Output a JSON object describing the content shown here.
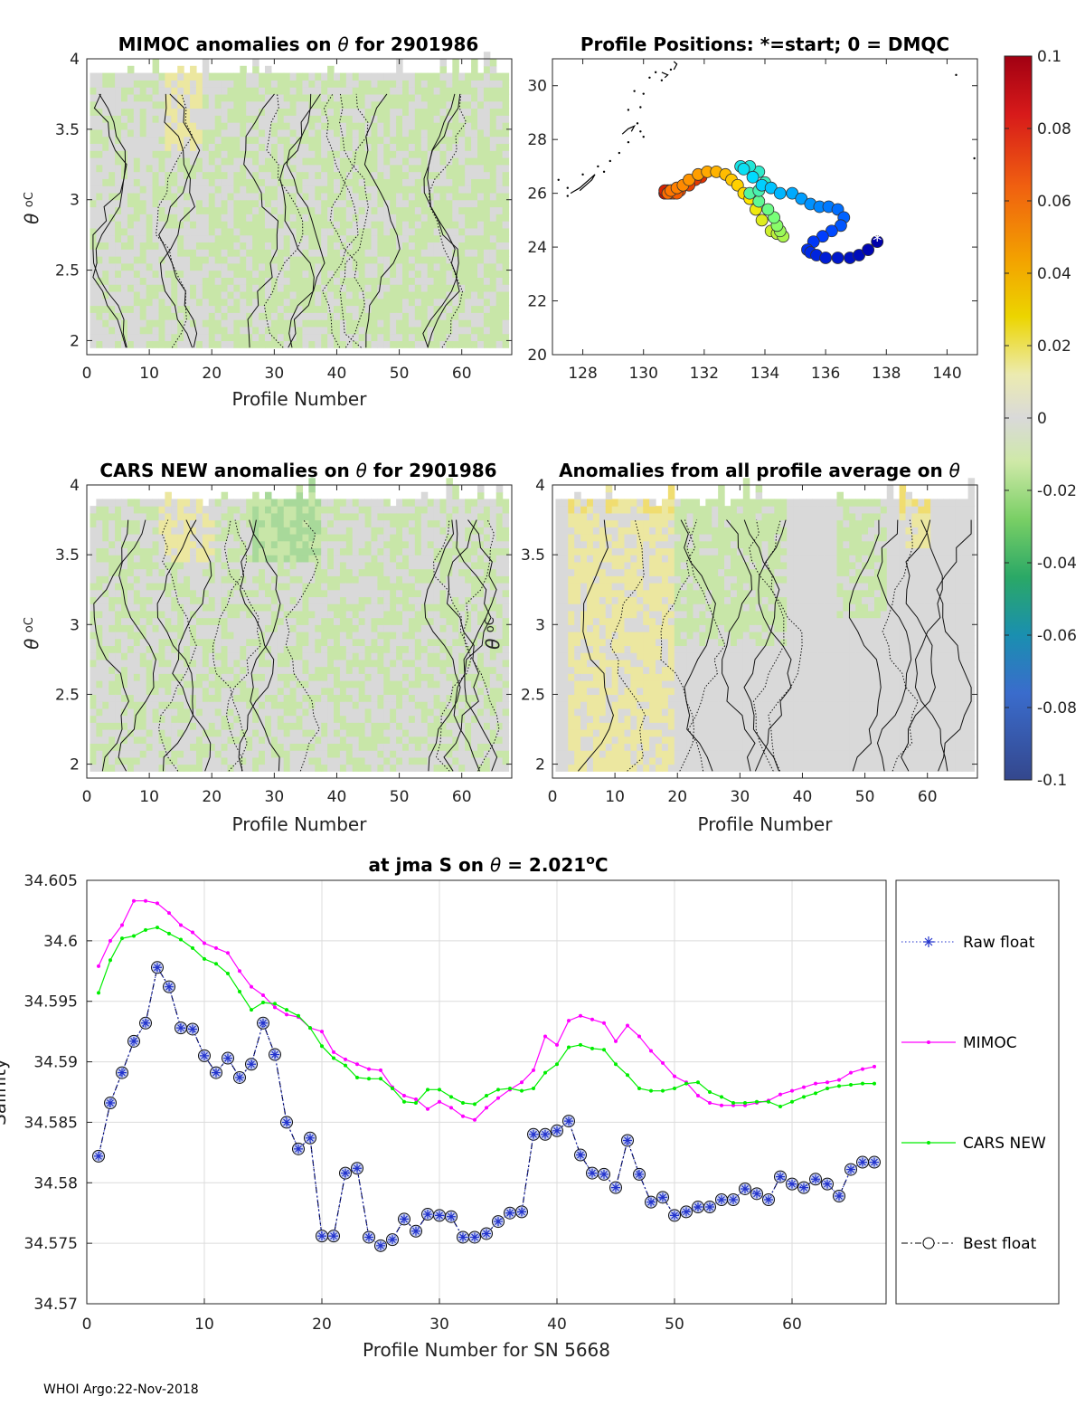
{
  "footer": "WHOI Argo:22-Nov-2018",
  "colors": {
    "mimoc": "#ff00ff",
    "cars": "#00ee00",
    "best_float": "#000033",
    "raw_float": "#2233cc",
    "marker_fill": "#c8d0f0",
    "anomaly_near_zero": "#d9d9d9",
    "anomaly_neg": "#c8e6a8",
    "anomaly_pos": "#ece7a0"
  },
  "chart_data": [
    {
      "id": "mimoc",
      "type": "heatmap",
      "title": "MIMOC anomalies on θ  for 2901986",
      "title_text": "MIMOC anomalies on ",
      "title_symbol": "θ",
      "title_suffix": "  for 2901986",
      "xlabel": "Profile Number",
      "ylabel_symbol": "θ",
      "ylabel_unit": "oC",
      "xlim": [
        0,
        68
      ],
      "ylim": [
        1.9,
        4
      ],
      "xticks": [
        "0",
        "10",
        "20",
        "30",
        "40",
        "50",
        "60"
      ],
      "yticks": [
        "2",
        "2.5",
        "3",
        "3.5",
        "4"
      ],
      "note": "mostly grey (≈0) to light green (-0.01 to -0.02) anomalies; yellow band near profiles 13-18"
    },
    {
      "id": "positions",
      "type": "scatter",
      "title": "Profile Positions: *=start; 0 = DMQC",
      "xlim": [
        127,
        141
      ],
      "ylim": [
        20,
        31
      ],
      "xticks": [
        "128",
        "130",
        "132",
        "134",
        "136",
        "138",
        "140"
      ],
      "yticks": [
        "20",
        "22",
        "24",
        "26",
        "28",
        "30"
      ],
      "start_marker": "*",
      "track": [
        [
          137.7,
          24.2
        ],
        [
          137.4,
          23.9
        ],
        [
          137.1,
          23.7
        ],
        [
          136.8,
          23.6
        ],
        [
          136.4,
          23.6
        ],
        [
          136.0,
          23.6
        ],
        [
          135.7,
          23.7
        ],
        [
          135.5,
          23.8
        ],
        [
          135.4,
          23.9
        ],
        [
          135.6,
          24.2
        ],
        [
          135.9,
          24.4
        ],
        [
          136.2,
          24.6
        ],
        [
          136.5,
          24.8
        ],
        [
          136.6,
          25.1
        ],
        [
          136.4,
          25.4
        ],
        [
          136.1,
          25.5
        ],
        [
          135.8,
          25.5
        ],
        [
          135.5,
          25.6
        ],
        [
          135.2,
          25.8
        ],
        [
          134.9,
          26.0
        ],
        [
          134.5,
          26.0
        ],
        [
          134.2,
          26.2
        ],
        [
          133.9,
          26.3
        ],
        [
          133.6,
          26.6
        ],
        [
          133.3,
          26.9
        ],
        [
          133.2,
          27.0
        ],
        [
          133.5,
          27.0
        ],
        [
          133.8,
          26.8
        ],
        [
          134.0,
          26.4
        ],
        [
          133.8,
          26.1
        ],
        [
          133.5,
          26.0
        ],
        [
          133.8,
          25.7
        ],
        [
          134.1,
          25.4
        ],
        [
          134.3,
          25.1
        ],
        [
          134.4,
          24.8
        ],
        [
          134.5,
          24.6
        ],
        [
          134.6,
          24.4
        ],
        [
          134.4,
          24.5
        ],
        [
          134.2,
          24.6
        ],
        [
          133.9,
          25.0
        ],
        [
          133.7,
          25.4
        ],
        [
          133.5,
          25.8
        ],
        [
          133.3,
          26.0
        ],
        [
          133.1,
          26.3
        ],
        [
          132.9,
          26.5
        ],
        [
          132.7,
          26.7
        ],
        [
          132.4,
          26.8
        ],
        [
          132.1,
          26.8
        ],
        [
          131.8,
          26.7
        ],
        [
          131.5,
          26.5
        ],
        [
          131.3,
          26.3
        ],
        [
          131.1,
          26.2
        ],
        [
          130.9,
          26.1
        ],
        [
          130.8,
          26.0
        ],
        [
          130.9,
          26.1
        ],
        [
          131.1,
          26.0
        ],
        [
          131.0,
          26.0
        ],
        [
          131.2,
          26.1
        ],
        [
          131.5,
          26.3
        ],
        [
          131.7,
          26.5
        ],
        [
          131.9,
          26.6
        ],
        [
          130.8,
          26.0
        ],
        [
          130.7,
          26.1
        ],
        [
          130.9,
          26.0
        ],
        [
          130.7,
          26.0
        ],
        [
          130.8,
          26.1
        ],
        [
          130.7,
          26.0
        ]
      ],
      "coast": [
        [
          [
            127.6,
            26.0
          ],
          [
            127.9,
            26.2
          ],
          [
            128.2,
            26.5
          ],
          [
            128.4,
            26.7
          ],
          [
            128.3,
            26.5
          ],
          [
            127.9,
            26.1
          ]
        ],
        [
          [
            129.3,
            28.2
          ],
          [
            129.5,
            28.4
          ],
          [
            129.7,
            28.5
          ],
          [
            129.6,
            28.3
          ]
        ],
        [
          [
            130.6,
            30.5
          ],
          [
            130.8,
            30.4
          ],
          [
            130.7,
            30.3
          ]
        ],
        [
          [
            131.0,
            30.6
          ],
          [
            131.1,
            30.8
          ],
          [
            131.0,
            30.9
          ]
        ]
      ],
      "coast_dots": [
        [
          127.2,
          26.5
        ],
        [
          127.5,
          26.2
        ],
        [
          128.0,
          26.7
        ],
        [
          128.5,
          27.0
        ],
        [
          128.9,
          27.2
        ],
        [
          129.2,
          27.5
        ],
        [
          129.5,
          27.9
        ],
        [
          129.9,
          28.3
        ],
        [
          130.0,
          28.1
        ],
        [
          129.8,
          28.6
        ],
        [
          130.0,
          29.7
        ],
        [
          129.5,
          29.1
        ],
        [
          129.7,
          29.8
        ],
        [
          129.9,
          29.2
        ],
        [
          130.2,
          30.3
        ],
        [
          130.4,
          30.5
        ],
        [
          130.6,
          30.2
        ],
        [
          130.9,
          30.6
        ],
        [
          140.3,
          30.4
        ],
        [
          140.9,
          27.3
        ],
        [
          127.5,
          25.9
        ],
        [
          128.7,
          26.8
        ]
      ]
    },
    {
      "id": "cars",
      "type": "heatmap",
      "title": "CARS NEW anomalies on θ for 2901986",
      "title_text": "CARS NEW anomalies on ",
      "title_symbol": "θ",
      "title_suffix": " for 2901986",
      "xlabel": "Profile Number",
      "ylabel_symbol": "θ",
      "ylabel_unit": "oC",
      "xlim": [
        0,
        68
      ],
      "ylim": [
        1.9,
        4
      ],
      "xticks": [
        "0",
        "10",
        "20",
        "30",
        "40",
        "50",
        "60"
      ],
      "yticks": [
        "2",
        "2.5",
        "3",
        "3.5",
        "4"
      ],
      "note": "grey to light green; darker green patch near profiles 27-37 at 3.5-3.9 C"
    },
    {
      "id": "average",
      "type": "heatmap",
      "title": "Anomalies from all profile average on θ",
      "title_text": "Anomalies from all profile average on ",
      "title_symbol": "θ",
      "xlabel": "Profile Number",
      "ylabel_symbol": "θ",
      "ylabel_unit": "oC",
      "xlim": [
        0,
        68
      ],
      "ylim": [
        1.9,
        4
      ],
      "xticks": [
        "0",
        "10",
        "20",
        "30",
        "40",
        "50",
        "60"
      ],
      "yticks": [
        "2",
        "2.5",
        "3",
        "3.5",
        "4"
      ],
      "note": "yellow (positive) anomalies for profiles 3-19 and near 57-60; green for 20-37 and 46-53"
    },
    {
      "id": "colorbar",
      "type": "colorbar",
      "range": [
        -0.1,
        0.1
      ],
      "ticks": [
        "0.1",
        "0.08",
        "0.06",
        "0.04",
        "0.02",
        "0",
        "-0.02",
        "-0.04",
        "-0.06",
        "-0.08",
        "-0.1"
      ]
    },
    {
      "id": "salinity",
      "type": "line",
      "title": "at jma S on θ = 2.021oC",
      "title_text": "at jma S on ",
      "title_symbol": "θ",
      "title_value": " = 2.021",
      "title_unit_o": "o",
      "title_unit_c": "C",
      "xlabel": "Profile Number for SN 5668",
      "ylabel": "Salinity",
      "xlim": [
        0,
        68
      ],
      "ylim": [
        34.57,
        34.605
      ],
      "xticks": [
        "0",
        "10",
        "20",
        "30",
        "40",
        "50",
        "60"
      ],
      "yticks": [
        "34.57",
        "34.575",
        "34.58",
        "34.585",
        "34.59",
        "34.595",
        "34.6",
        "34.605"
      ],
      "grid": true,
      "legend_position": "right (outside)",
      "x": [
        1,
        2,
        3,
        4,
        5,
        6,
        7,
        8,
        9,
        10,
        11,
        12,
        13,
        14,
        15,
        16,
        17,
        18,
        19,
        20,
        21,
        22,
        23,
        24,
        25,
        26,
        27,
        28,
        29,
        30,
        31,
        32,
        33,
        34,
        35,
        36,
        37,
        38,
        39,
        40,
        41,
        42,
        43,
        44,
        45,
        46,
        47,
        48,
        49,
        50,
        51,
        52,
        53,
        54,
        55,
        56,
        57,
        58,
        59,
        60,
        61,
        62,
        63,
        64,
        65,
        66,
        67
      ],
      "series": [
        {
          "name": "Raw float",
          "style": "dotted-star",
          "values": [
            34.5822,
            34.5866,
            34.5891,
            34.5917,
            34.5932,
            34.5978,
            34.5962,
            34.5928,
            34.5927,
            34.5905,
            34.5891,
            34.5903,
            34.5887,
            34.5898,
            34.5932,
            34.5906,
            34.585,
            34.5828,
            34.5837,
            34.5756,
            34.5756,
            34.5808,
            34.5812,
            34.5755,
            34.5748,
            34.5753,
            34.577,
            34.576,
            34.5774,
            34.5773,
            34.5772,
            34.5755,
            34.5755,
            34.5758,
            34.5768,
            34.5775,
            34.5776,
            34.584,
            34.584,
            34.5843,
            34.5851,
            34.5823,
            34.5808,
            34.5807,
            34.5796,
            34.5835,
            34.5807,
            34.5784,
            34.5788,
            34.5773,
            34.5776,
            34.578,
            34.578,
            34.5786,
            34.5786,
            34.5795,
            34.5791,
            34.5786,
            34.5805,
            34.5799,
            34.5796,
            34.5803,
            34.5799,
            34.5789,
            34.5811,
            34.5817,
            34.5817
          ]
        },
        {
          "name": "MIMOC",
          "style": "solid-dot",
          "values": [
            34.5979,
            34.6,
            34.6013,
            34.6033,
            34.6033,
            34.6031,
            34.6023,
            34.6013,
            34.6007,
            34.5998,
            34.5994,
            34.599,
            34.5975,
            34.5962,
            34.5955,
            34.5945,
            34.5939,
            34.5937,
            34.5928,
            34.5925,
            34.5908,
            34.5902,
            34.5898,
            34.5894,
            34.5893,
            34.5879,
            34.5872,
            34.5869,
            34.5861,
            34.5867,
            34.5862,
            34.5855,
            34.5852,
            34.5862,
            34.587,
            34.5877,
            34.5883,
            34.5893,
            34.5921,
            34.5914,
            34.5934,
            34.5938,
            34.5935,
            34.5932,
            34.5917,
            34.593,
            34.5921,
            34.5909,
            34.5899,
            34.5888,
            34.5883,
            34.5872,
            34.5866,
            34.5864,
            34.5864,
            34.5864,
            34.5866,
            34.5868,
            34.5873,
            34.5876,
            34.5879,
            34.5882,
            34.5883,
            34.5885,
            34.5891,
            34.5894,
            34.5896
          ]
        },
        {
          "name": "CARS NEW",
          "style": "solid-dot",
          "values": [
            34.5957,
            34.5984,
            34.6002,
            34.6004,
            34.6009,
            34.6011,
            34.6006,
            34.6001,
            34.5994,
            34.5985,
            34.5981,
            34.5973,
            34.5958,
            34.5943,
            34.5949,
            34.5948,
            34.5943,
            34.5938,
            34.5928,
            34.5913,
            34.5903,
            34.5897,
            34.5887,
            34.5886,
            34.5886,
            34.5878,
            34.5867,
            34.5866,
            34.5877,
            34.5877,
            34.5871,
            34.5866,
            34.5865,
            34.5872,
            34.5877,
            34.5878,
            34.5876,
            34.5878,
            34.5891,
            34.5898,
            34.5912,
            34.5914,
            34.5911,
            34.591,
            34.5898,
            34.5889,
            34.5878,
            34.5876,
            34.5876,
            34.5878,
            34.5882,
            34.5883,
            34.5875,
            34.5871,
            34.5866,
            34.5866,
            34.5867,
            34.5867,
            34.5863,
            34.5867,
            34.5871,
            34.5874,
            34.5878,
            34.588,
            34.5881,
            34.5882,
            34.5882
          ]
        },
        {
          "name": "Best float",
          "style": "dashdot-circle",
          "values": [
            34.5822,
            34.5866,
            34.5891,
            34.5917,
            34.5932,
            34.5978,
            34.5962,
            34.5928,
            34.5927,
            34.5905,
            34.5891,
            34.5903,
            34.5887,
            34.5898,
            34.5932,
            34.5906,
            34.585,
            34.5828,
            34.5837,
            34.5756,
            34.5756,
            34.5808,
            34.5812,
            34.5755,
            34.5748,
            34.5753,
            34.577,
            34.576,
            34.5774,
            34.5773,
            34.5772,
            34.5755,
            34.5755,
            34.5758,
            34.5768,
            34.5775,
            34.5776,
            34.584,
            34.584,
            34.5843,
            34.5851,
            34.5823,
            34.5808,
            34.5807,
            34.5796,
            34.5835,
            34.5807,
            34.5784,
            34.5788,
            34.5773,
            34.5776,
            34.578,
            34.578,
            34.5786,
            34.5786,
            34.5795,
            34.5791,
            34.5786,
            34.5805,
            34.5799,
            34.5796,
            34.5803,
            34.5799,
            34.5789,
            34.5811,
            34.5817,
            34.5817
          ]
        }
      ]
    }
  ]
}
